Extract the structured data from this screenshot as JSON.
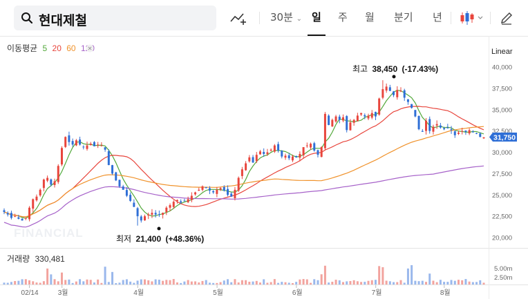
{
  "search": {
    "query": "현대제철"
  },
  "toolbar": {
    "interval_dropdown": "30분",
    "periods": [
      "일",
      "주",
      "월",
      "분기",
      "년"
    ],
    "active_period": "일",
    "chart_type_icon": "candlestick-icon",
    "draw_tool_icon": "pencil-icon",
    "indicator_icon": "trend-add-icon"
  },
  "indicator": {
    "name": "이동평균",
    "periods": [
      "5",
      "20",
      "60",
      "120"
    ],
    "colors": [
      "#52a83a",
      "#e8453c",
      "#f0922b",
      "#a661c9"
    ]
  },
  "scale_mode": "Linear",
  "watermark": "FINANCIAL",
  "colors": {
    "up": "#e8453c",
    "down": "#2f6fd6",
    "last_price_bg": "#2f6fd6"
  },
  "chart_data": {
    "type": "candlestick",
    "price_axis": {
      "ticks": [
        "40,000",
        "37,500",
        "35,000",
        "32,500",
        "30,000",
        "27,500",
        "25,000",
        "22,500",
        "20,000"
      ],
      "ylim": [
        19700,
        40300
      ]
    },
    "last_price": "31,750",
    "high_annotation": {
      "label": "최고",
      "value": "38,450",
      "change": "(-17.43%)"
    },
    "low_annotation": {
      "label": "최저",
      "value": "21,400",
      "change": "(+48.36%)"
    },
    "x_labels": [
      "02/14",
      "3월",
      "4월",
      "5월",
      "6월",
      "7월",
      "8월"
    ],
    "volume": {
      "label": "거래량",
      "value": "330,481",
      "ticks": [
        "5.00m",
        "2.50m"
      ]
    },
    "closes": [
      23000,
      22700,
      22300,
      22500,
      22200,
      22000,
      22300,
      23500,
      24500,
      24800,
      25600,
      26800,
      27000,
      26200,
      26600,
      28400,
      30500,
      31800,
      31200,
      30900,
      31400,
      30900,
      30600,
      30800,
      31000,
      30700,
      30900,
      30800,
      30300,
      28500,
      27500,
      26700,
      26000,
      25600,
      24900,
      24300,
      23600,
      22500,
      22000,
      22500,
      22700,
      22900,
      22700,
      22700,
      22900,
      23500,
      23800,
      24200,
      24400,
      24100,
      24300,
      24500,
      24900,
      25300,
      25600,
      26000,
      25800,
      25500,
      25300,
      25600,
      25800,
      25500,
      25000,
      24800,
      25600,
      27000,
      28000,
      28700,
      29400,
      28800,
      29700,
      30100,
      29800,
      30000,
      30300,
      30800,
      30200,
      29500,
      29600,
      29300,
      29500,
      29400,
      29800,
      30600,
      30800,
      31000,
      30200,
      29700,
      30600,
      34500,
      33200,
      33800,
      34200,
      33800,
      34100,
      32600,
      33500,
      33800,
      34300,
      34600,
      34200,
      34300,
      34600,
      34200,
      36300,
      37400,
      37700,
      37200,
      36700,
      37300,
      37200,
      36400,
      35900,
      35200,
      34200,
      32700,
      32400,
      33700,
      32500,
      33000,
      33300,
      32900,
      32700,
      32800,
      32600,
      32000,
      32300,
      32500,
      32400,
      32600,
      32400,
      32200,
      31800,
      31750
    ],
    "ma": {
      "5": [],
      "20": [],
      "60": [],
      "120": []
    }
  }
}
